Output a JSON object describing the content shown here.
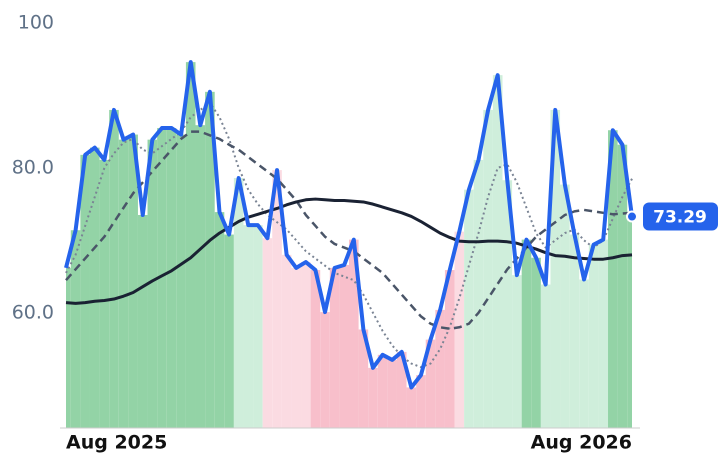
{
  "chart_data": {
    "type": "line",
    "categories": [
      "Aug 2025",
      null,
      null,
      null,
      null,
      null,
      null,
      null,
      null,
      null,
      null,
      null,
      null,
      null,
      null,
      null,
      null,
      null,
      null,
      null,
      null,
      null,
      null,
      null,
      null,
      null,
      null,
      null,
      null,
      null,
      null,
      null,
      null,
      null,
      null,
      null,
      null,
      null,
      null,
      null,
      null,
      null,
      null,
      null,
      null,
      null,
      null,
      null,
      null,
      null,
      null,
      null,
      null,
      null,
      null,
      null,
      null,
      null,
      null,
      "Aug 2026"
    ],
    "series": [
      {
        "color": "#2563eb",
        "dash": "solid",
        "width": 4,
        "values": [
          66.2,
          71.4,
          81.8,
          82.8,
          81.1,
          88.0,
          83.9,
          84.6,
          73.5,
          83.9,
          85.5,
          85.5,
          84.6,
          94.6,
          85.9,
          90.5,
          73.9,
          70.8,
          78.6,
          72.1,
          72.1,
          70.3,
          79.7,
          68.0,
          66.2,
          67.0,
          65.9,
          60.1,
          66.2,
          66.6,
          70.1,
          57.7,
          52.4,
          54.2,
          53.5,
          54.6,
          49.7,
          51.4,
          56.3,
          60.4,
          65.9,
          71.2,
          77.0,
          81.1,
          88.0,
          92.8,
          78.3,
          65.2,
          70.1,
          67.6,
          63.9,
          88.0,
          77.7,
          70.8,
          64.6,
          69.4,
          70.1,
          85.2,
          83.2,
          73.29
        ]
      },
      {
        "color": "#1a2233",
        "dash": "solid",
        "width": 3,
        "values": [
          61.4,
          61.3,
          61.4,
          61.6,
          61.7,
          61.9,
          62.3,
          62.8,
          63.6,
          64.4,
          65.1,
          65.8,
          66.7,
          67.6,
          68.8,
          70.0,
          71.0,
          71.8,
          72.6,
          73.2,
          73.6,
          74.0,
          74.4,
          74.9,
          75.3,
          75.6,
          75.7,
          75.6,
          75.5,
          75.5,
          75.4,
          75.3,
          75.0,
          74.6,
          74.2,
          73.8,
          73.3,
          72.6,
          71.8,
          71.0,
          70.4,
          69.9,
          69.8,
          69.8,
          69.9,
          69.9,
          69.8,
          69.6,
          69.2,
          68.8,
          68.3,
          67.9,
          67.8,
          67.6,
          67.5,
          67.4,
          67.4,
          67.6,
          67.9,
          68.0
        ]
      },
      {
        "color": "#4a5568",
        "dash": "dashed",
        "width": 2.5,
        "values": [
          64.5,
          66,
          67.5,
          69,
          70.5,
          72.5,
          74.5,
          76.5,
          78,
          79.5,
          81,
          82.5,
          84,
          85,
          85,
          84.5,
          84,
          83.2,
          82.5,
          81.5,
          80.5,
          79.5,
          78.5,
          77,
          75.5,
          73.5,
          72,
          70.5,
          69.5,
          69,
          68.5,
          67.5,
          66.5,
          65.5,
          64,
          62.5,
          61,
          59.5,
          58.5,
          58,
          57.8,
          58,
          58.5,
          60,
          62,
          64,
          66,
          67.5,
          69,
          70.5,
          71.5,
          72.5,
          73.5,
          74,
          74.2,
          74,
          73.8,
          73.6,
          73.7,
          73.8
        ]
      },
      {
        "color": "#7a8494",
        "dash": "dotted",
        "width": 2,
        "values": [
          65.5,
          68,
          72,
          76,
          80,
          82,
          83.5,
          84,
          82.5,
          82,
          83,
          84,
          85,
          87,
          88,
          89,
          87,
          84,
          80,
          77,
          75,
          73.5,
          72.5,
          71.5,
          70,
          68.5,
          67.5,
          66.5,
          65.5,
          65,
          64.5,
          62.5,
          60,
          57.5,
          55.5,
          54,
          53,
          52.5,
          53,
          55,
          58,
          62,
          66.5,
          71,
          76,
          80,
          80.5,
          78,
          74.5,
          71,
          69,
          70,
          71,
          71.5,
          70,
          69,
          70,
          73,
          76,
          78.5
        ]
      }
    ],
    "fill_colors": [
      "#93d3a6",
      "#93d3a6",
      "#93d3a6",
      "#93d3a6",
      "#93d3a6",
      "#93d3a6",
      "#93d3a6",
      "#93d3a6",
      "#93d3a6",
      "#93d3a6",
      "#93d3a6",
      "#93d3a6",
      "#93d3a6",
      "#93d3a6",
      "#93d3a6",
      "#93d3a6",
      "#93d3a6",
      "#93d3a6",
      "#cfeedb",
      "#cfeedb",
      "#cfeedb",
      "#fbdbe2",
      "#fbdbe2",
      "#fbdbe2",
      "#fbdbe2",
      "#fbdbe2",
      "#f8bfcb",
      "#f8bfcb",
      "#f8bfcb",
      "#f8bfcb",
      "#f8bfcb",
      "#f8bfcb",
      "#f8bfcb",
      "#f8bfcb",
      "#f8bfcb",
      "#f8bfcb",
      "#f8bfcb",
      "#f8bfcb",
      "#f8bfcb",
      "#f8bfcb",
      "#f8bfcb",
      "#fbdbe2",
      "#cfeedb",
      "#cfeedb",
      "#cfeedb",
      "#cfeedb",
      "#cfeedb",
      "#cfeedb",
      "#93d3a6",
      "#93d3a6",
      "#cfeedb",
      "#cfeedb",
      "#cfeedb",
      "#cfeedb",
      "#cfeedb",
      "#cfeedb",
      "#cfeedb",
      "#93d3a6",
      "#93d3a6",
      "#93d3a6"
    ],
    "ylim": [
      44.1,
      100
    ],
    "yticks": [
      100,
      {
        "value": 80,
        "label": "80.0"
      },
      {
        "value": 60,
        "label": "60.0"
      }
    ],
    "grid": false
  }
}
